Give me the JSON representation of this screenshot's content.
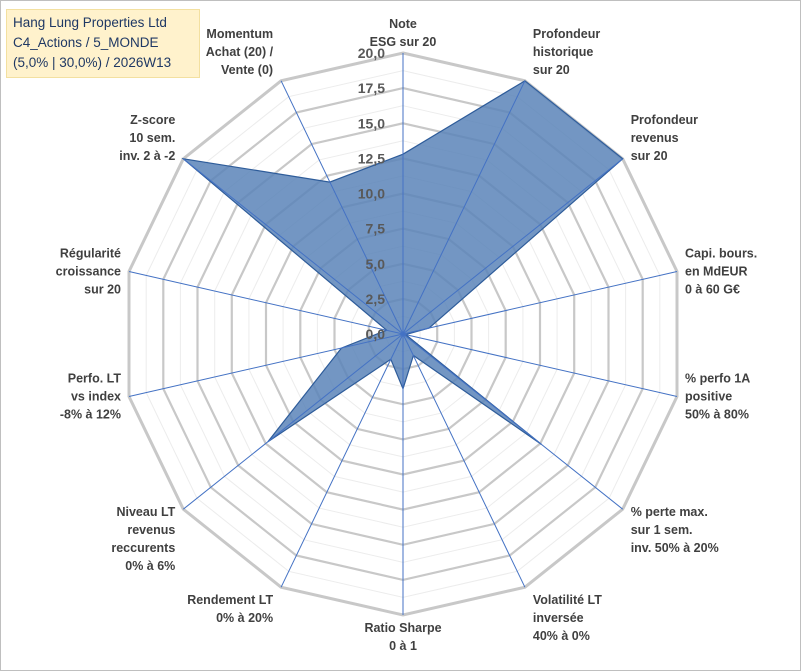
{
  "header": {
    "line1": "Hang Lung Properties Ltd",
    "line2": "C4_Actions / 5_MONDE",
    "line3": "(5,0% | 30,0%) / 2026W13"
  },
  "chart_data": {
    "type": "radar",
    "rmin": 0,
    "rmax": 20,
    "tick_step": 2.5,
    "tick_labels": [
      "0,0",
      "2,5",
      "5,0",
      "7,5",
      "10,0",
      "12,5",
      "15,0",
      "17,5",
      "20,0"
    ],
    "gridlines": true,
    "fill_color": "#5b84b8",
    "stroke_color": "#2e5c9a",
    "axes": [
      {
        "label": [
          "Note",
          "ESG sur 20"
        ],
        "value": 12.8
      },
      {
        "label": [
          "Profondeur",
          "historique",
          "sur 20"
        ],
        "value": 20.0
      },
      {
        "label": [
          "Profondeur",
          "revenus",
          "sur 20"
        ],
        "value": 20.0
      },
      {
        "label": [
          "Capi. bours.",
          "en MdEUR",
          "0 à 60 G€"
        ],
        "value": 1.9
      },
      {
        "label": [
          "% perfo 1A",
          "positive",
          "50% à 80%"
        ],
        "value": 0.2
      },
      {
        "label": [
          "% perte max.",
          "sur 1 sem.",
          "inv. 50% à 20%"
        ],
        "value": 12.6
      },
      {
        "label": [
          "Volatilité LT",
          "inversée",
          "40% à 0%"
        ],
        "value": 1.7
      },
      {
        "label": [
          "Ratio Sharpe",
          "0 à 1"
        ],
        "value": 3.9
      },
      {
        "label": [
          "Rendement LT",
          "0% à 20%"
        ],
        "value": 2.0
      },
      {
        "label": [
          "Niveau LT",
          "revenus",
          "reccurents",
          "0% à 6%"
        ],
        "value": 12.3
      },
      {
        "label": [
          "Perfo. LT",
          "vs index",
          "-8% à 12%"
        ],
        "value": 4.5
      },
      {
        "label": [
          "Régularité",
          "croissance",
          "sur 20"
        ],
        "value": 1.2
      },
      {
        "label": [
          "Z-score",
          "10 sem.",
          "inv. 2 à -2"
        ],
        "value": 20.0
      },
      {
        "label": [
          "Momentum",
          "Achat (20) /",
          "Vente (0)"
        ],
        "value": 12.0
      }
    ]
  }
}
